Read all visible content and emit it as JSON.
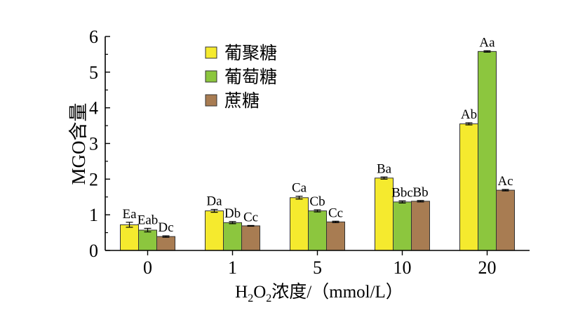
{
  "chart_data": {
    "type": "bar",
    "title": "",
    "xlabel": "H2O2浓度/（mmol/L）",
    "xlabel_parts": {
      "main": "H",
      "sub1": "2",
      "mid": "O",
      "sub2": "2",
      "tail": "浓度/（mmol/L）"
    },
    "ylabel": "MGO含量",
    "ylim": [
      0,
      6
    ],
    "yticks": [
      0,
      1,
      2,
      3,
      4,
      5,
      6
    ],
    "categories": [
      "0",
      "1",
      "5",
      "10",
      "20"
    ],
    "legend_position": "top-left",
    "grid": false,
    "series": [
      {
        "name": "葡聚糖",
        "color": "#f5ea2e",
        "values": [
          0.72,
          1.11,
          1.48,
          2.03,
          3.55
        ],
        "errors": [
          0.07,
          0.04,
          0.04,
          0.03,
          0.03
        ],
        "labels": [
          "Ea",
          "Da",
          "Ca",
          "Ba",
          "Ab"
        ]
      },
      {
        "name": "葡萄糖",
        "color": "#8cc63e",
        "values": [
          0.57,
          0.78,
          1.11,
          1.36,
          5.58
        ],
        "errors": [
          0.05,
          0.03,
          0.03,
          0.03,
          0.02
        ],
        "labels": [
          "Eab",
          "Db",
          "Cb",
          "Bbc",
          "Aa"
        ]
      },
      {
        "name": "蔗糖",
        "color": "#a87c52",
        "values": [
          0.39,
          0.69,
          0.8,
          1.38,
          1.69
        ],
        "errors": [
          0.02,
          0.01,
          0.02,
          0.02,
          0.02
        ],
        "labels": [
          "Dc",
          "Cc",
          "Cc",
          "Bb",
          "Ac"
        ]
      }
    ]
  }
}
